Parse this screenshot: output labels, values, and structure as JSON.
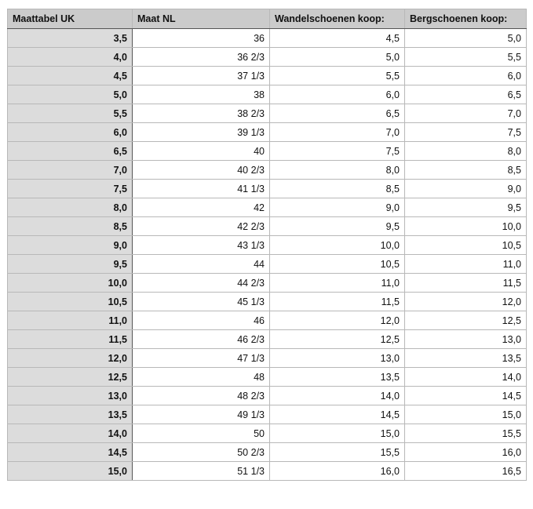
{
  "headers": [
    "Maattabel UK",
    "Maat NL",
    "Wandelschoenen koop:",
    "Bergschoenen koop:"
  ],
  "rows": [
    [
      "3,5",
      "36",
      "4,5",
      "5,0"
    ],
    [
      "4,0",
      "36 2/3",
      "5,0",
      "5,5"
    ],
    [
      "4,5",
      "37 1/3",
      "5,5",
      "6,0"
    ],
    [
      "5,0",
      "38",
      "6,0",
      "6,5"
    ],
    [
      "5,5",
      "38 2/3",
      "6,5",
      "7,0"
    ],
    [
      "6,0",
      "39 1/3",
      "7,0",
      "7,5"
    ],
    [
      "6,5",
      "40",
      "7,5",
      "8,0"
    ],
    [
      "7,0",
      "40 2/3",
      "8,0",
      "8,5"
    ],
    [
      "7,5",
      "41 1/3",
      "8,5",
      "9,0"
    ],
    [
      "8,0",
      "42",
      "9,0",
      "9,5"
    ],
    [
      "8,5",
      "42 2/3",
      "9,5",
      "10,0"
    ],
    [
      "9,0",
      "43 1/3",
      "10,0",
      "10,5"
    ],
    [
      "9,5",
      "44",
      "10,5",
      "11,0"
    ],
    [
      "10,0",
      "44 2/3",
      "11,0",
      "11,5"
    ],
    [
      "10,5",
      "45 1/3",
      "11,5",
      "12,0"
    ],
    [
      "11,0",
      "46",
      "12,0",
      "12,5"
    ],
    [
      "11,5",
      "46 2/3",
      "12,5",
      "13,0"
    ],
    [
      "12,0",
      "47 1/3",
      "13,0",
      "13,5"
    ],
    [
      "12,5",
      "48",
      "13,5",
      "14,0"
    ],
    [
      "13,0",
      "48 2/3",
      "14,0",
      "14,5"
    ],
    [
      "13,5",
      "49 1/3",
      "14,5",
      "15,0"
    ],
    [
      "14,0",
      "50",
      "15,0",
      "15,5"
    ],
    [
      "14,5",
      "50 2/3",
      "15,5",
      "16,0"
    ],
    [
      "15,0",
      "51 1/3",
      "16,0",
      "16,5"
    ]
  ]
}
